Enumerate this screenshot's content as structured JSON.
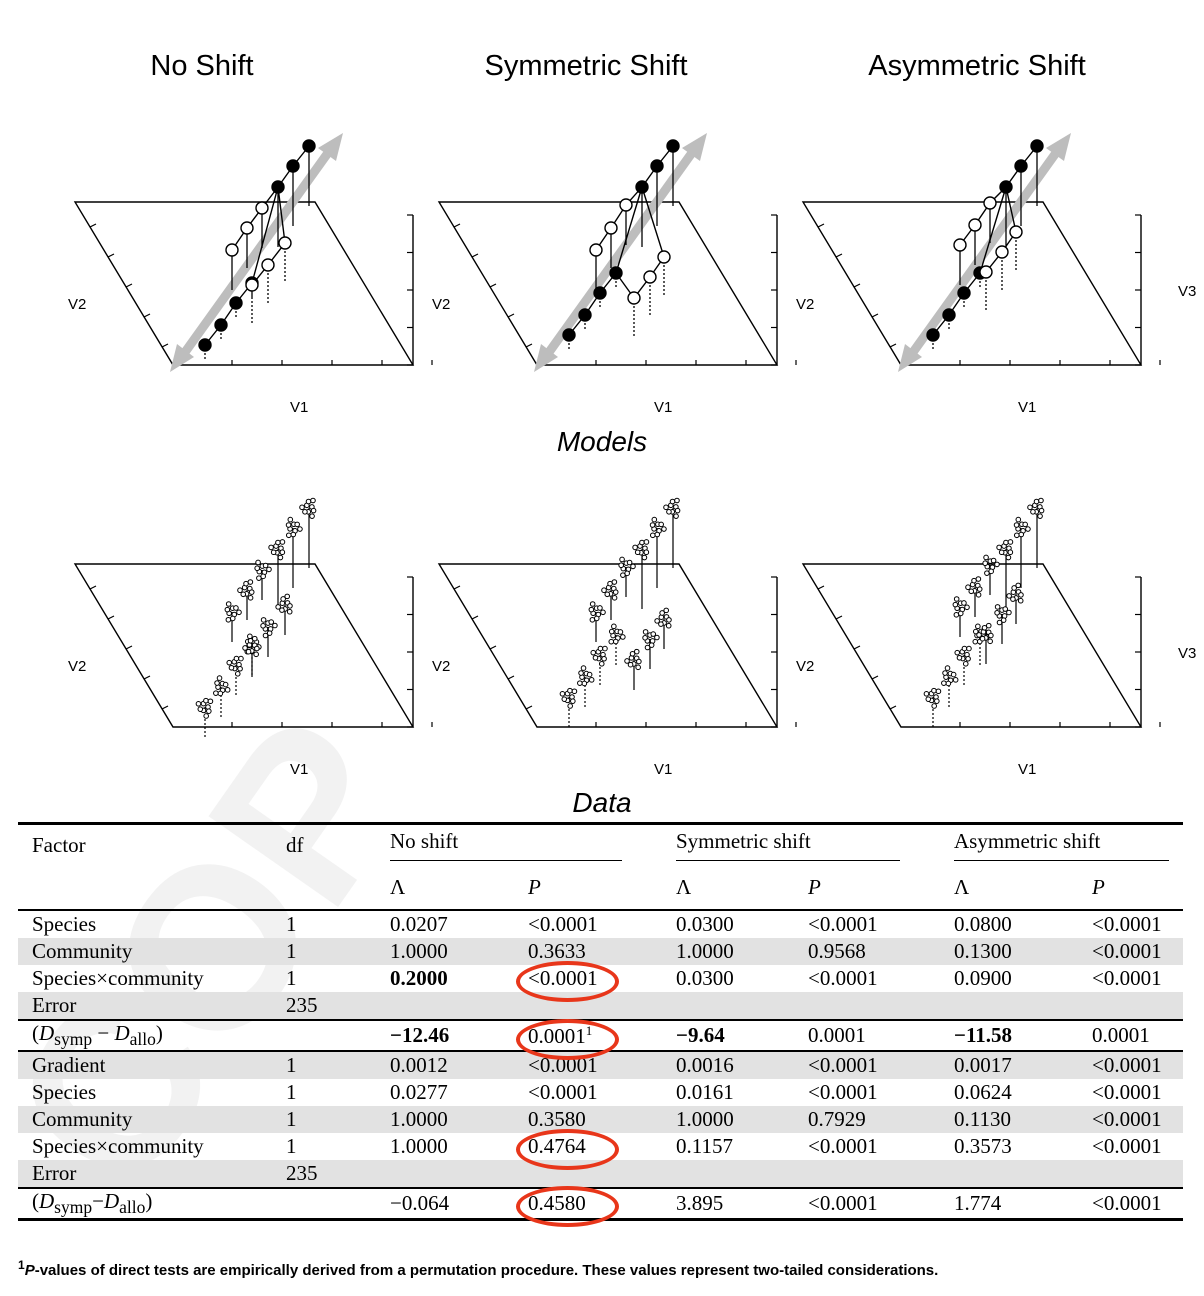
{
  "panel_titles": [
    "No Shift",
    "Symmetric Shift",
    "Asymmetric Shift"
  ],
  "captions": {
    "models": "Models",
    "data": "Data"
  },
  "axis_labels": {
    "x": "V1",
    "y": "V2",
    "z": "V3"
  },
  "table": {
    "headers": {
      "factor": "Factor",
      "df": "df",
      "no_shift": "No shift",
      "symmetric_shift": "Symmetric shift",
      "asymmetric_shift": "Asymmetric shift",
      "lambda": "Λ",
      "p": "P"
    },
    "block1": [
      {
        "factor": "Species",
        "df": "1",
        "ns_l": "0.0207",
        "ns_p": "<0.0001",
        "ss_l": "0.0300",
        "ss_p": "<0.0001",
        "as_l": "0.0800",
        "as_p": "<0.0001"
      },
      {
        "factor": "Community",
        "df": "1",
        "ns_l": "1.0000",
        "ns_p": "0.3633",
        "ss_l": "1.0000",
        "ss_p": "0.9568",
        "as_l": "0.1300",
        "as_p": "<0.0001"
      },
      {
        "factor": "Species×community",
        "df": "1",
        "ns_l": "0.2000",
        "ns_p": "<0.0001",
        "ss_l": "0.0300",
        "ss_p": "<0.0001",
        "as_l": "0.0900",
        "as_p": "<0.0001"
      },
      {
        "factor": "Error",
        "df": "235",
        "ns_l": "",
        "ns_p": "",
        "ss_l": "",
        "ss_p": "",
        "as_l": "",
        "as_p": ""
      }
    ],
    "diff1": {
      "label_D": "D",
      "sub_symp": "symp",
      "minus": " − ",
      "sub_allo": "allo",
      "ns_l": "−12.46",
      "ns_p": "0.0001",
      "ns_p_sup": "1",
      "ss_l": "−9.64",
      "ss_p": "0.0001",
      "as_l": "−11.58",
      "as_p": "0.0001"
    },
    "block2": [
      {
        "factor": "Gradient",
        "df": "1",
        "ns_l": "0.0012",
        "ns_p": "<0.0001",
        "ss_l": "0.0016",
        "ss_p": "<0.0001",
        "as_l": "0.0017",
        "as_p": "<0.0001"
      },
      {
        "factor": "Species",
        "df": "1",
        "ns_l": "0.0277",
        "ns_p": "<0.0001",
        "ss_l": "0.0161",
        "ss_p": "<0.0001",
        "as_l": "0.0624",
        "as_p": "<0.0001"
      },
      {
        "factor": "Community",
        "df": "1",
        "ns_l": "1.0000",
        "ns_p": "0.3580",
        "ss_l": "1.0000",
        "ss_p": "0.7929",
        "as_l": "0.1130",
        "as_p": "<0.0001"
      },
      {
        "factor": "Species×community",
        "df": "1",
        "ns_l": "1.0000",
        "ns_p": "0.4764",
        "ss_l": "0.1157",
        "ss_p": "<0.0001",
        "as_l": "0.3573",
        "as_p": "<0.0001"
      },
      {
        "factor": "Error",
        "df": "235",
        "ns_l": "",
        "ns_p": "",
        "ss_l": "",
        "ss_p": "",
        "as_l": "",
        "as_p": ""
      }
    ],
    "diff2": {
      "ns_l": "−0.064",
      "ns_p": "0.4580",
      "ss_l": "3.895",
      "ss_p": "<0.0001",
      "as_l": "1.774",
      "as_p": "<0.0001"
    }
  },
  "footnote": {
    "marker": "1",
    "p_italic": "P",
    "text": "-values of direct tests are empirically derived from a permutation procedure. These values represent two-tailed considerations."
  },
  "colors": {
    "highlight": "#e8361a",
    "shade": "#e2e2e2",
    "arrow": "#bdbdbd"
  }
}
